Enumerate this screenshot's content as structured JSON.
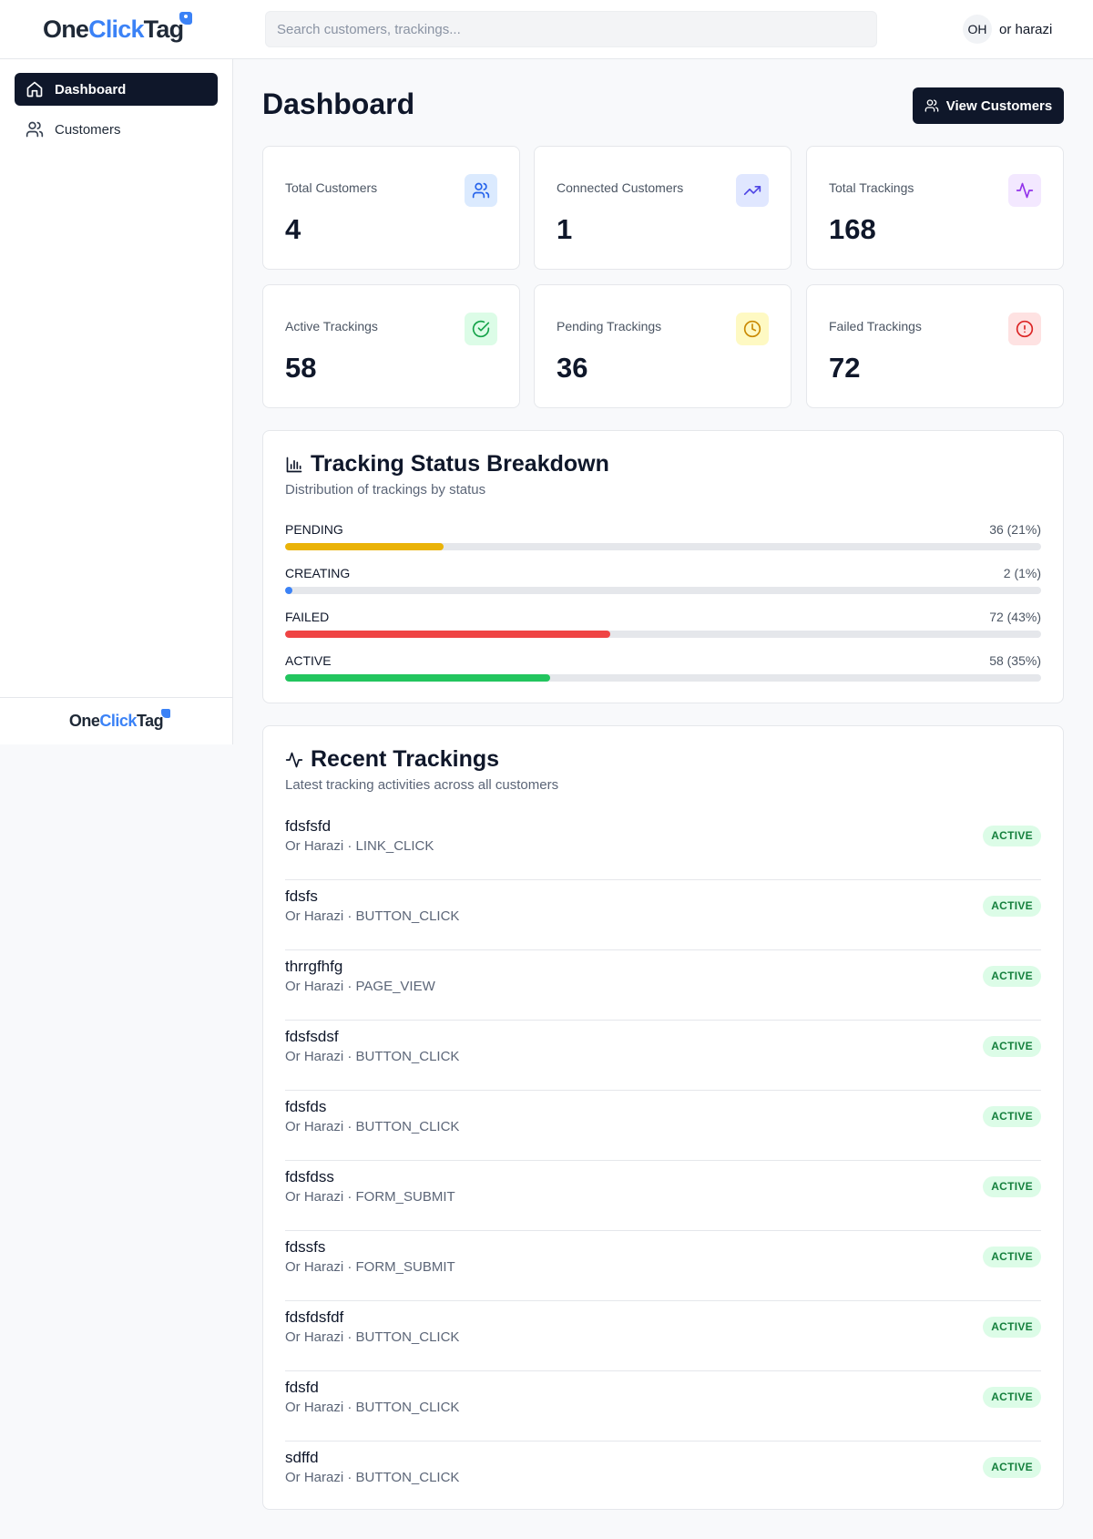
{
  "header": {
    "logo": {
      "part1": "One",
      "part2": "Click",
      "part3": "Tag"
    },
    "search_placeholder": "Search customers, trackings...",
    "user": {
      "initials": "OH",
      "name": "or harazi"
    }
  },
  "sidebar": {
    "items": [
      {
        "label": "Dashboard",
        "icon": "home-icon",
        "active": true
      },
      {
        "label": "Customers",
        "icon": "users-icon",
        "active": false
      }
    ],
    "footer_logo": {
      "part1": "One",
      "part2": "Click",
      "part3": "Tag"
    }
  },
  "main": {
    "title": "Dashboard",
    "view_customers_label": "View Customers",
    "stats": [
      {
        "label": "Total Customers",
        "value": "4",
        "icon": "users-icon",
        "color": "#2563eb",
        "bg": "#dbeafe"
      },
      {
        "label": "Connected Customers",
        "value": "1",
        "icon": "trending-up-icon",
        "color": "#4f46e5",
        "bg": "#e0e7ff"
      },
      {
        "label": "Total Trackings",
        "value": "168",
        "icon": "activity-icon",
        "color": "#9333ea",
        "bg": "#f3e8ff"
      },
      {
        "label": "Active Trackings",
        "value": "58",
        "icon": "check-circle-icon",
        "color": "#16a34a",
        "bg": "#dcfce7"
      },
      {
        "label": "Pending Trackings",
        "value": "36",
        "icon": "clock-icon",
        "color": "#ca8a04",
        "bg": "#fef9c3"
      },
      {
        "label": "Failed Trackings",
        "value": "72",
        "icon": "alert-circle-icon",
        "color": "#dc2626",
        "bg": "#fee2e2"
      }
    ],
    "breakdown": {
      "title": "Tracking Status Breakdown",
      "subtitle": "Distribution of trackings by status",
      "rows": [
        {
          "status": "PENDING",
          "count_text": "36 (21%)",
          "percent": 21,
          "color": "#eab308"
        },
        {
          "status": "CREATING",
          "count_text": "2 (1%)",
          "percent": 1,
          "color": "#3b82f6"
        },
        {
          "status": "FAILED",
          "count_text": "72 (43%)",
          "percent": 43,
          "color": "#ef4444"
        },
        {
          "status": "ACTIVE",
          "count_text": "58 (35%)",
          "percent": 35,
          "color": "#22c55e"
        }
      ]
    },
    "recent": {
      "title": "Recent Trackings",
      "subtitle": "Latest tracking activities across all customers",
      "items": [
        {
          "name": "fdsfsfd",
          "meta": "Or Harazi · LINK_CLICK",
          "status": "ACTIVE"
        },
        {
          "name": "fdsfs",
          "meta": "Or Harazi · BUTTON_CLICK",
          "status": "ACTIVE"
        },
        {
          "name": "thrrgfhfg",
          "meta": "Or Harazi · PAGE_VIEW",
          "status": "ACTIVE"
        },
        {
          "name": "fdsfsdsf",
          "meta": "Or Harazi · BUTTON_CLICK",
          "status": "ACTIVE"
        },
        {
          "name": "fdsfds",
          "meta": "Or Harazi · BUTTON_CLICK",
          "status": "ACTIVE"
        },
        {
          "name": "fdsfdss",
          "meta": "Or Harazi · FORM_SUBMIT",
          "status": "ACTIVE"
        },
        {
          "name": "fdssfs",
          "meta": "Or Harazi · FORM_SUBMIT",
          "status": "ACTIVE"
        },
        {
          "name": "fdsfdsfdf",
          "meta": "Or Harazi · BUTTON_CLICK",
          "status": "ACTIVE"
        },
        {
          "name": "fdsfd",
          "meta": "Or Harazi · BUTTON_CLICK",
          "status": "ACTIVE"
        },
        {
          "name": "sdffd",
          "meta": "Or Harazi · BUTTON_CLICK",
          "status": "ACTIVE"
        }
      ]
    }
  }
}
